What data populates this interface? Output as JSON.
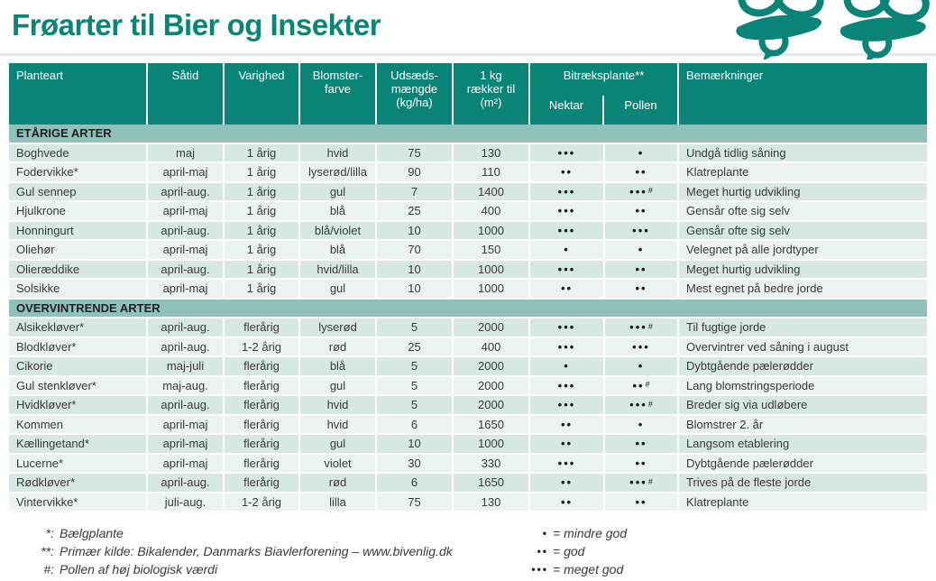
{
  "page": {
    "title": "Frøarter til Bier og Insekter"
  },
  "colors": {
    "teal": "#0b8478",
    "section_bg": "#8fc0ba",
    "row_dark": "#d7e7e5",
    "row_light": "#eaf3f1",
    "text_dark": "#3a3a3a"
  },
  "table": {
    "columns": [
      "Planteart",
      "Såtid",
      "Varighed",
      "Blomster-\nfarve",
      "Udsæds-\nmængde\n(kg/ha)",
      "1 kg\nrækker til\n(m²)",
      "Bitræksplante**",
      "Nektar",
      "Pollen",
      "Bemærkninger"
    ],
    "sections": [
      {
        "label": "ETÅRIGE ARTER",
        "rows": [
          {
            "planteart": "Boghvede",
            "saatid": "maj",
            "varighed": "1 årig",
            "blomsterfarve": "hvid",
            "udsaedsmaengde": "75",
            "raekker_til": "130",
            "nektar": "•••",
            "pollen": "•",
            "pollen_note": "",
            "bemaerkninger": "Undgå tidlig såning"
          },
          {
            "planteart": "Fodervikke*",
            "saatid": "april-maj",
            "varighed": "1 årig",
            "blomsterfarve": "lyserød/lilla",
            "udsaedsmaengde": "90",
            "raekker_til": "110",
            "nektar": "••",
            "pollen": "••",
            "pollen_note": "",
            "bemaerkninger": "Klatreplante"
          },
          {
            "planteart": "Gul sennep",
            "saatid": "april-aug.",
            "varighed": "1 årig",
            "blomsterfarve": "gul",
            "udsaedsmaengde": "7",
            "raekker_til": "1400",
            "nektar": "•••",
            "pollen": "•••",
            "pollen_note": "#",
            "bemaerkninger": "Meget hurtig udvikling"
          },
          {
            "planteart": "Hjulkrone",
            "saatid": "april-maj",
            "varighed": "1 årig",
            "blomsterfarve": "blå",
            "udsaedsmaengde": "25",
            "raekker_til": "400",
            "nektar": "•••",
            "pollen": "••",
            "pollen_note": "",
            "bemaerkninger": "Gensår ofte sig selv"
          },
          {
            "planteart": "Honningurt",
            "saatid": "april-aug.",
            "varighed": "1 årig",
            "blomsterfarve": "blå/violet",
            "udsaedsmaengde": "10",
            "raekker_til": "1000",
            "nektar": "•••",
            "pollen": "•••",
            "pollen_note": "",
            "bemaerkninger": "Gensår ofte sig selv"
          },
          {
            "planteart": "Oliehør",
            "saatid": "april-maj",
            "varighed": "1 årig",
            "blomsterfarve": "blå",
            "udsaedsmaengde": "70",
            "raekker_til": "150",
            "nektar": "•",
            "pollen": "•",
            "pollen_note": "",
            "bemaerkninger": "Velegnet på alle jordtyper"
          },
          {
            "planteart": "Olieræddike",
            "saatid": "april-aug.",
            "varighed": "1 årig",
            "blomsterfarve": "hvid/lilla",
            "udsaedsmaengde": "10",
            "raekker_til": "1000",
            "nektar": "•••",
            "pollen": "••",
            "pollen_note": "",
            "bemaerkninger": "Meget hurtig udvikling"
          },
          {
            "planteart": "Solsikke",
            "saatid": "april-maj",
            "varighed": "1 årig",
            "blomsterfarve": "gul",
            "udsaedsmaengde": "10",
            "raekker_til": "1000",
            "nektar": "••",
            "pollen": "••",
            "pollen_note": "",
            "bemaerkninger": "Mest egnet på bedre jorde"
          }
        ]
      },
      {
        "label": "OVERVINTRENDE ARTER",
        "rows": [
          {
            "planteart": "Alsikekløver*",
            "saatid": "april-aug.",
            "varighed": "flerårig",
            "blomsterfarve": "lyserød",
            "udsaedsmaengde": "5",
            "raekker_til": "2000",
            "nektar": "•••",
            "pollen": "•••",
            "pollen_note": "#",
            "bemaerkninger": "Til fugtige jorde"
          },
          {
            "planteart": "Blodkløver*",
            "saatid": "april-aug.",
            "varighed": "1-2 årig",
            "blomsterfarve": "rød",
            "udsaedsmaengde": "25",
            "raekker_til": "400",
            "nektar": "•••",
            "pollen": "•••",
            "pollen_note": "",
            "bemaerkninger": "Overvintrer ved såning i august"
          },
          {
            "planteart": "Cikorie",
            "saatid": "maj-juli",
            "varighed": "flerårig",
            "blomsterfarve": "blå",
            "udsaedsmaengde": "5",
            "raekker_til": "2000",
            "nektar": "•",
            "pollen": "•",
            "pollen_note": "",
            "bemaerkninger": "Dybtgående pælerødder"
          },
          {
            "planteart": "Gul stenkløver*",
            "saatid": "maj-aug.",
            "varighed": "flerårig",
            "blomsterfarve": "gul",
            "udsaedsmaengde": "5",
            "raekker_til": "2000",
            "nektar": "•••",
            "pollen": "••",
            "pollen_note": "#",
            "bemaerkninger": "Lang blomstringsperiode"
          },
          {
            "planteart": "Hvidkløver*",
            "saatid": "april-aug.",
            "varighed": "flerårig",
            "blomsterfarve": "hvid",
            "udsaedsmaengde": "5",
            "raekker_til": "2000",
            "nektar": "•••",
            "pollen": "•••",
            "pollen_note": "#",
            "bemaerkninger": "Breder sig via udløbere"
          },
          {
            "planteart": "Kommen",
            "saatid": "april-maj",
            "varighed": "flerårig",
            "blomsterfarve": "hvid",
            "udsaedsmaengde": "6",
            "raekker_til": "1650",
            "nektar": "••",
            "pollen": "•",
            "pollen_note": "",
            "bemaerkninger": "Blomstrer 2. år"
          },
          {
            "planteart": "Kællingetand*",
            "saatid": "april-maj",
            "varighed": "flerårig",
            "blomsterfarve": "gul",
            "udsaedsmaengde": "10",
            "raekker_til": "1000",
            "nektar": "••",
            "pollen": "••",
            "pollen_note": "",
            "bemaerkninger": "Langsom etablering"
          },
          {
            "planteart": "Lucerne*",
            "saatid": "april-maj",
            "varighed": "flerårig",
            "blomsterfarve": "violet",
            "udsaedsmaengde": "30",
            "raekker_til": "330",
            "nektar": "•••",
            "pollen": "••",
            "pollen_note": "",
            "bemaerkninger": "Dybtgående pælerødder"
          },
          {
            "planteart": "Rødkløver*",
            "saatid": "april-aug.",
            "varighed": "flerårig",
            "blomsterfarve": "rød",
            "udsaedsmaengde": "6",
            "raekker_til": "1650",
            "nektar": "••",
            "pollen": "•••",
            "pollen_note": "#",
            "bemaerkninger": "Trives på de fleste jorde"
          },
          {
            "planteart": "Vintervikke*",
            "saatid": "juli-aug.",
            "varighed": "1-2 årig",
            "blomsterfarve": "lilla",
            "udsaedsmaengde": "75",
            "raekker_til": "130",
            "nektar": "••",
            "pollen": "••",
            "pollen_note": "",
            "bemaerkninger": "Klatreplante"
          }
        ]
      }
    ]
  },
  "footnotes": [
    {
      "symbol": "*:",
      "text": "Bælgplante"
    },
    {
      "symbol": "**:",
      "text": "Primær kilde: Bikalender, Danmarks Biavlerforening – www.bivenlig.dk"
    },
    {
      "symbol": "#:",
      "text": "Pollen af høj biologisk værdi"
    }
  ],
  "rating_legend": [
    {
      "symbol": "•",
      "text": "= mindre god"
    },
    {
      "symbol": "••",
      "text": "= god"
    },
    {
      "symbol": "•••",
      "text": "= meget god"
    }
  ]
}
